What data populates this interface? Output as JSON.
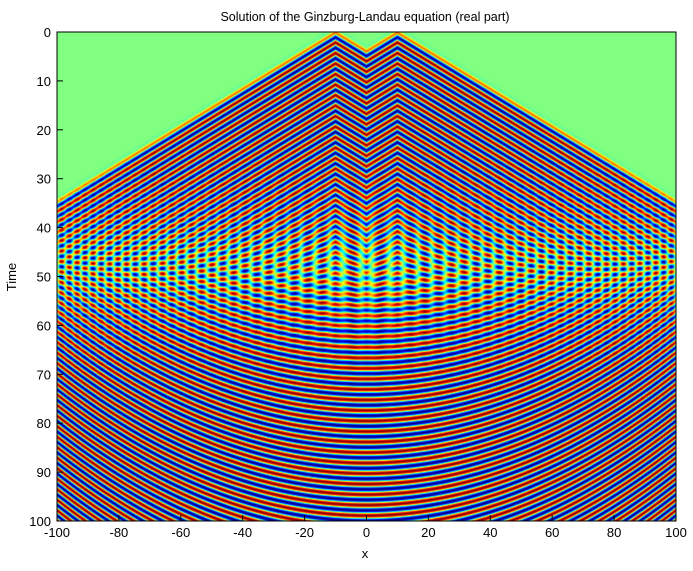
{
  "chart_data": {
    "type": "heatmap",
    "title": "Solution of the Ginzburg-Landau equation (real part)",
    "xlabel": "x",
    "ylabel": "Time",
    "xlim": [
      -100,
      100
    ],
    "ylim": [
      0,
      100
    ],
    "y_reversed": true,
    "x_ticks": [
      "-100",
      "-80",
      "-60",
      "-40",
      "-20",
      "0",
      "20",
      "40",
      "60",
      "80",
      "100"
    ],
    "y_ticks": [
      "0",
      "10",
      "20",
      "30",
      "40",
      "50",
      "60",
      "70",
      "80",
      "90",
      "100"
    ],
    "colormap": "jet",
    "background_color": "#80ff80",
    "grid": false,
    "legend": false,
    "field": {
      "initial_sources_x": [
        -10,
        10
      ],
      "front_speed": 2.6,
      "front_width": 1.6,
      "mesh_peak_time": 52,
      "wave_period_time": 2.15,
      "envelope_curvature": 0.0045
    }
  }
}
